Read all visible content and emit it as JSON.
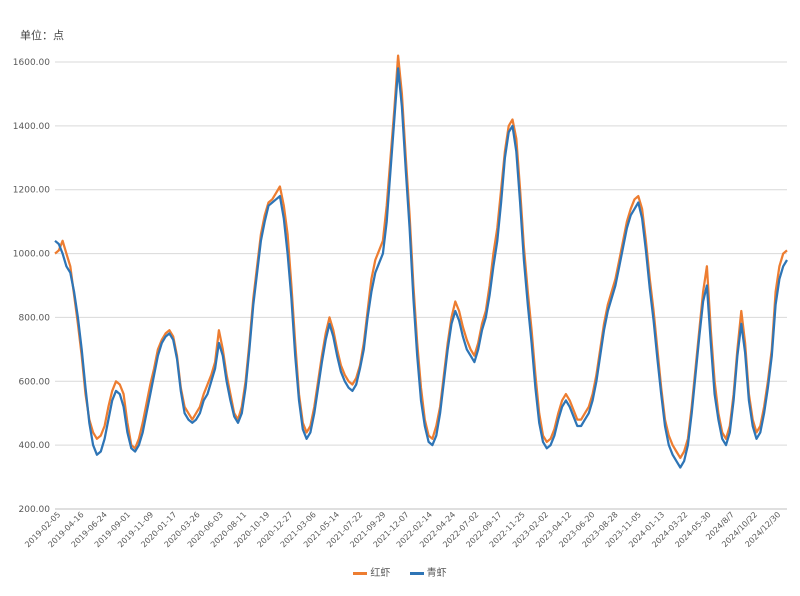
{
  "unit_label": "单位：点",
  "chart_data": {
    "type": "line",
    "ylim": [
      200,
      1600
    ],
    "yticks": [
      200,
      400,
      600,
      800,
      1000,
      1200,
      1400,
      1600
    ],
    "ytick_labels": [
      "200.00",
      "400.00",
      "600.00",
      "800.00",
      "1000.00",
      "1200.00",
      "1400.00",
      "1600.00"
    ],
    "xtick_labels": [
      "2019-02-05",
      "2019-04-16",
      "2019-06-24",
      "2019-09-01",
      "2019-11-09",
      "2020-01-17",
      "2020-03-26",
      "2020-06-03",
      "2020-08-11",
      "2020-10-19",
      "2020-12-27",
      "2021-03-06",
      "2021-05-14",
      "2021-07-22",
      "2021-09-29",
      "2021-12-07",
      "2022-02-14",
      "2022-04-24",
      "2022-07-02",
      "2022-09-17",
      "2022-11-25",
      "2023-02-02",
      "2023-04-12",
      "2023-06-20",
      "2023-08-28",
      "2023-11-05",
      "2024-01-13",
      "2024-03-22",
      "2024-05-30",
      "2024/8/7",
      "2024/10/22",
      "2024/12/30"
    ],
    "grid": true,
    "legend_position": "bottom",
    "series": [
      {
        "name": "红虾",
        "color": "#ED7D31",
        "values": [
          1000,
          1010,
          1040,
          1000,
          960,
          870,
          780,
          680,
          560,
          480,
          440,
          420,
          430,
          460,
          520,
          570,
          600,
          590,
          560,
          470,
          400,
          390,
          420,
          470,
          530,
          590,
          640,
          700,
          730,
          750,
          760,
          740,
          680,
          580,
          520,
          500,
          480,
          500,
          520,
          560,
          590,
          620,
          660,
          760,
          700,
          620,
          560,
          500,
          480,
          520,
          600,
          720,
          860,
          960,
          1060,
          1120,
          1160,
          1170,
          1190,
          1210,
          1150,
          1060,
          900,
          720,
          560,
          470,
          440,
          460,
          520,
          600,
          680,
          750,
          800,
          760,
          700,
          650,
          620,
          600,
          590,
          610,
          650,
          720,
          820,
          920,
          980,
          1010,
          1040,
          1150,
          1300,
          1450,
          1620,
          1500,
          1300,
          1120,
          900,
          720,
          580,
          480,
          430,
          420,
          460,
          520,
          620,
          720,
          800,
          850,
          820,
          770,
          730,
          700,
          680,
          720,
          780,
          820,
          900,
          1000,
          1080,
          1200,
          1320,
          1400,
          1420,
          1360,
          1200,
          1020,
          880,
          760,
          620,
          500,
          430,
          410,
          420,
          450,
          500,
          540,
          560,
          540,
          510,
          480,
          480,
          500,
          520,
          560,
          620,
          700,
          780,
          840,
          880,
          920,
          980,
          1040,
          1100,
          1140,
          1170,
          1180,
          1140,
          1040,
          920,
          820,
          700,
          580,
          480,
          430,
          400,
          380,
          360,
          380,
          420,
          520,
          640,
          760,
          880,
          960,
          760,
          600,
          500,
          440,
          420,
          460,
          560,
          700,
          820,
          720,
          560,
          480,
          440,
          460,
          520,
          600,
          700,
          880,
          960,
          1000,
          1010
        ]
      },
      {
        "name": "青虾",
        "color": "#2E75B6",
        "values": [
          1040,
          1030,
          1000,
          960,
          940,
          880,
          800,
          700,
          580,
          470,
          400,
          370,
          380,
          420,
          480,
          540,
          570,
          560,
          520,
          440,
          390,
          380,
          400,
          440,
          500,
          560,
          620,
          680,
          720,
          740,
          750,
          730,
          670,
          570,
          500,
          480,
          470,
          480,
          500,
          540,
          560,
          600,
          640,
          720,
          680,
          600,
          540,
          490,
          470,
          500,
          580,
          700,
          840,
          940,
          1040,
          1100,
          1150,
          1160,
          1170,
          1180,
          1110,
          1000,
          860,
          680,
          540,
          450,
          420,
          440,
          500,
          580,
          660,
          730,
          780,
          740,
          680,
          630,
          600,
          580,
          570,
          590,
          640,
          700,
          800,
          880,
          940,
          970,
          1000,
          1100,
          1260,
          1420,
          1580,
          1460,
          1260,
          1080,
          860,
          680,
          540,
          460,
          410,
          400,
          430,
          500,
          600,
          700,
          780,
          820,
          790,
          740,
          700,
          680,
          660,
          700,
          760,
          800,
          870,
          960,
          1040,
          1160,
          1300,
          1380,
          1400,
          1320,
          1160,
          980,
          840,
          720,
          580,
          470,
          410,
          390,
          400,
          430,
          480,
          520,
          540,
          520,
          490,
          460,
          460,
          480,
          500,
          540,
          600,
          680,
          760,
          820,
          860,
          900,
          960,
          1020,
          1080,
          1120,
          1140,
          1160,
          1110,
          1010,
          890,
          790,
          670,
          560,
          460,
          400,
          370,
          350,
          330,
          350,
          400,
          500,
          620,
          740,
          850,
          900,
          720,
          560,
          480,
          420,
          400,
          440,
          540,
          680,
          780,
          690,
          540,
          460,
          420,
          440,
          500,
          580,
          680,
          840,
          920,
          960,
          980
        ]
      }
    ]
  }
}
